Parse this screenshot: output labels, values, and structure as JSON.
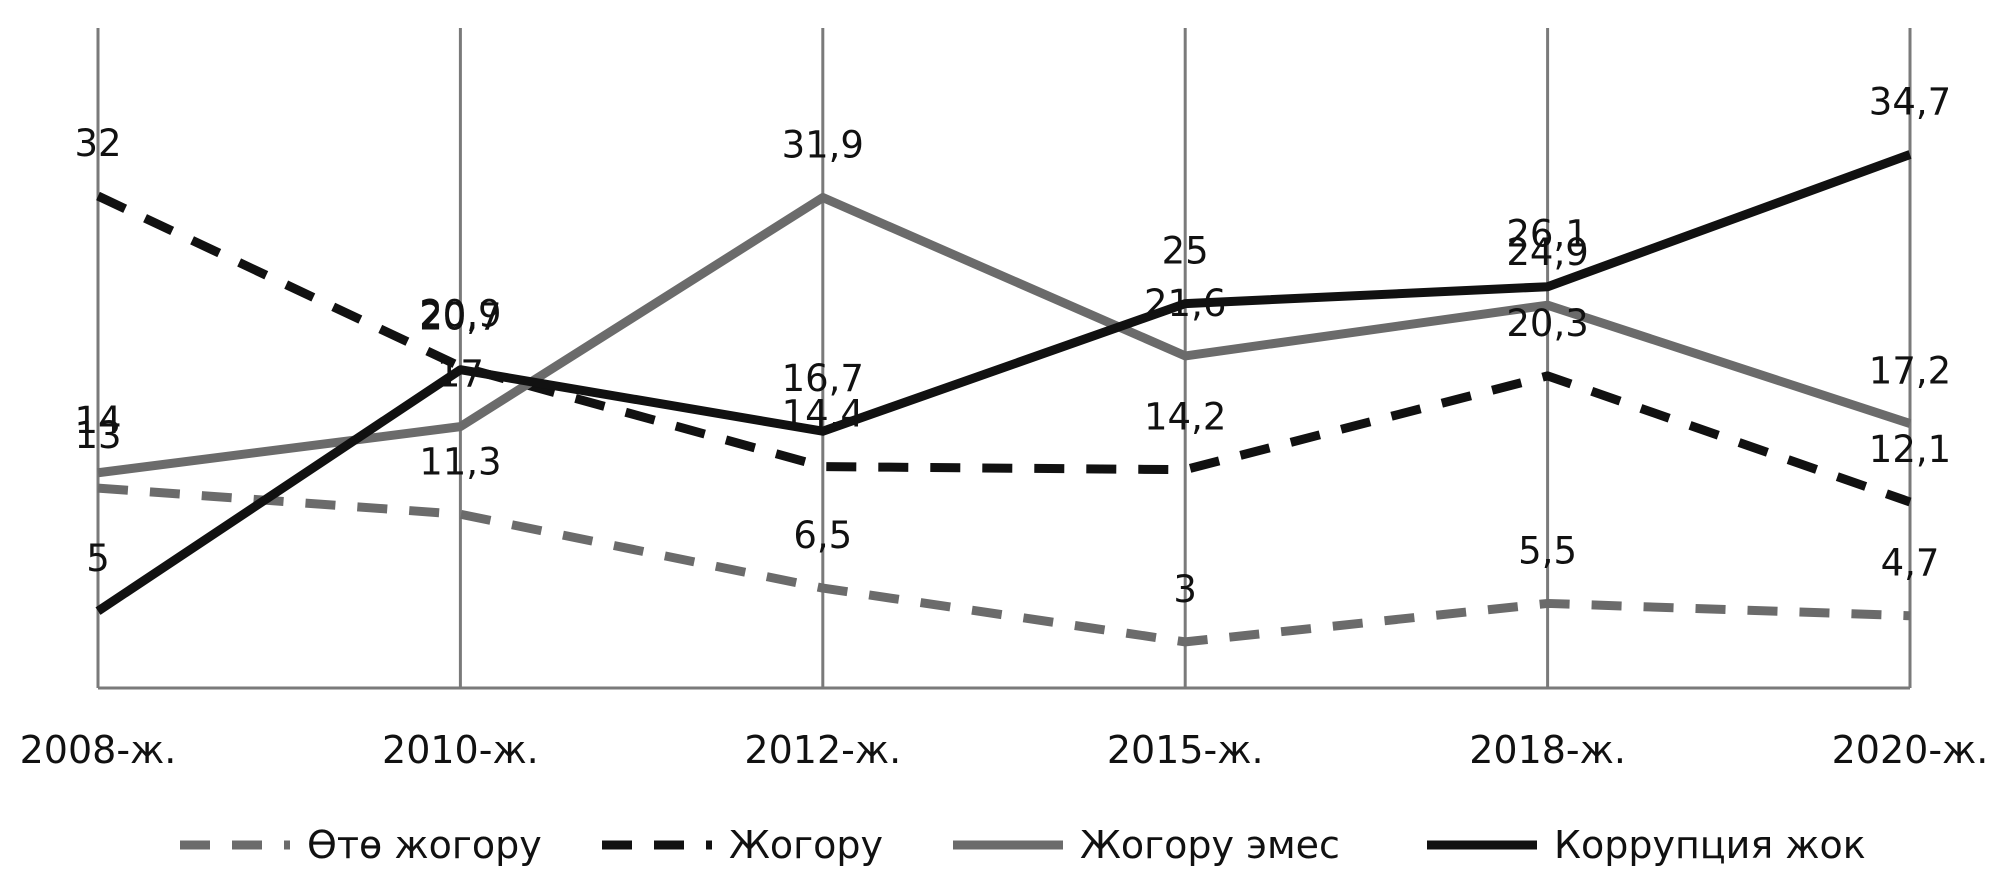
{
  "chart_data": {
    "type": "line",
    "categories": [
      "2008-ж.",
      "2010-ж.",
      "2012-ж.",
      "2015-ж.",
      "2018-ж.",
      "2020-ж."
    ],
    "ylim": [
      0,
      40
    ],
    "grid": "vertical",
    "legend_position": "bottom",
    "series": [
      {
        "name": "Өтө жогору",
        "values": [
          13,
          11.3,
          6.5,
          3,
          5.5,
          4.7
        ],
        "color": "#6b6b6b",
        "style": "dashed"
      },
      {
        "name": "Жогору",
        "values": [
          32,
          20.9,
          14.4,
          14.2,
          20.3,
          12.1
        ],
        "color": "#111111",
        "style": "dashed"
      },
      {
        "name": "Жогору эмес",
        "values": [
          14,
          17,
          31.9,
          21.6,
          24.9,
          17.2
        ],
        "color": "#6b6b6b",
        "style": "solid"
      },
      {
        "name": "Коррупция жок",
        "values": [
          5,
          20.7,
          16.7,
          25,
          26.1,
          34.7
        ],
        "color": "#111111",
        "style": "solid"
      }
    ]
  }
}
